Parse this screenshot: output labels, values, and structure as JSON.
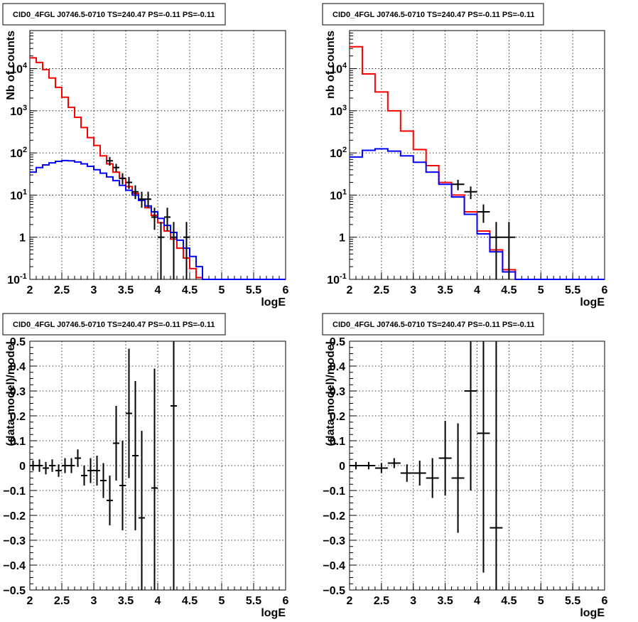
{
  "colors": {
    "data": "#000000",
    "model_total": "#ff0000",
    "model_source": "#0000ff"
  },
  "chart_data": [
    {
      "type": "histogram",
      "title": "CID0_4FGL J0746.5-0710 TS=240.47 PS=-0.11 PS=-0.11",
      "xlabel": "logE",
      "ylabel": "Nb of counts",
      "log_y": true,
      "grid": true,
      "xlim": [
        2,
        6
      ],
      "ylim": [
        0.1,
        80000
      ],
      "xticks": [
        "2",
        "2.5",
        "3",
        "3.5",
        "4",
        "4.5",
        "5",
        "5.5",
        "6"
      ],
      "yticks": [
        {
          "v": 0.1,
          "t": "10"
        },
        {
          "v": 1,
          "t": "1"
        },
        {
          "v": 10,
          "t": "10"
        },
        {
          "v": 100,
          "t": "10"
        },
        {
          "v": 1000,
          "t": "10"
        },
        {
          "v": 10000,
          "t": "10"
        }
      ],
      "bin_edges": [
        2.0,
        2.1,
        2.2,
        2.3,
        2.4,
        2.5,
        2.6,
        2.7,
        2.8,
        2.9,
        3.0,
        3.1,
        3.2,
        3.3,
        3.4,
        3.5,
        3.6,
        3.7,
        3.8,
        3.9,
        4.0,
        4.1,
        4.2,
        4.3,
        4.4,
        4.5,
        4.6,
        4.7,
        4.8,
        4.9,
        5.0,
        5.1,
        5.2,
        5.3,
        5.4,
        5.5,
        5.6,
        5.7,
        5.8,
        5.9,
        6.0
      ],
      "series": [
        {
          "name": "model_total",
          "values": [
            18000,
            14000,
            9500,
            6000,
            3600,
            2100,
            1200,
            700,
            400,
            230,
            150,
            85,
            55,
            35,
            25,
            16,
            11,
            7.5,
            5,
            3.3,
            2.2,
            1.4,
            0.9,
            0.55,
            0.32,
            0.18,
            0.11,
            0.1,
            0.1,
            0.1,
            0.1,
            0.1,
            0.1,
            0.1,
            0.1,
            0.1,
            0.1,
            0.1,
            0.1,
            0.1
          ]
        },
        {
          "name": "model_source",
          "values": [
            35,
            45,
            52,
            58,
            63,
            66,
            65,
            61,
            55,
            48,
            40,
            33,
            27,
            22,
            17,
            13,
            10,
            7.5,
            5.5,
            4,
            2.8,
            1.9,
            1.3,
            0.85,
            0.55,
            0.35,
            0.2,
            0.1,
            0.1,
            0.1,
            0.1,
            0.1,
            0.1,
            0.1,
            0.1,
            0.1,
            0.1,
            0.1,
            0.1,
            0.1
          ]
        },
        {
          "name": "data",
          "points": [
            {
              "x": 3.25,
              "y": 65,
              "lo": 50,
              "hi": 80
            },
            {
              "x": 3.35,
              "y": 45,
              "lo": 35,
              "hi": 55
            },
            {
              "x": 3.45,
              "y": 25,
              "lo": 18,
              "hi": 33
            },
            {
              "x": 3.55,
              "y": 20,
              "lo": 14,
              "hi": 27
            },
            {
              "x": 3.65,
              "y": 12,
              "lo": 8,
              "hi": 17
            },
            {
              "x": 3.75,
              "y": 8,
              "lo": 5,
              "hi": 12
            },
            {
              "x": 3.85,
              "y": 8,
              "lo": 5,
              "hi": 12
            },
            {
              "x": 3.95,
              "y": 3,
              "lo": 1.5,
              "hi": 5
            },
            {
              "x": 4.05,
              "y": 1,
              "lo": 0.1,
              "hi": 2.3
            },
            {
              "x": 4.15,
              "y": 3,
              "lo": 1.4,
              "hi": 5
            },
            {
              "x": 4.25,
              "y": 1,
              "lo": 0.1,
              "hi": 2.3
            },
            {
              "x": 4.45,
              "y": 1,
              "lo": 0.1,
              "hi": 2.3
            }
          ]
        }
      ]
    },
    {
      "type": "histogram",
      "title": "CID0_4FGL J0746.5-0710 TS=240.47 PS=-0.11 PS=-0.11",
      "xlabel": "logE",
      "ylabel": "nb of counts",
      "log_y": true,
      "grid": true,
      "xlim": [
        2,
        6
      ],
      "ylim": [
        0.1,
        80000
      ],
      "xticks": [
        "2",
        "2.5",
        "3",
        "3.5",
        "4",
        "4.5",
        "5",
        "5.5",
        "6"
      ],
      "yticks": [
        {
          "v": 0.1,
          "t": "10"
        },
        {
          "v": 1,
          "t": "1"
        },
        {
          "v": 10,
          "t": "10"
        },
        {
          "v": 100,
          "t": "10"
        },
        {
          "v": 1000,
          "t": "10"
        },
        {
          "v": 10000,
          "t": "10"
        }
      ],
      "bin_edges": [
        2.0,
        2.2,
        2.4,
        2.6,
        2.8,
        3.0,
        3.2,
        3.4,
        3.6,
        3.8,
        4.0,
        4.2,
        4.4,
        4.6,
        4.8,
        5.0,
        5.2,
        5.4,
        5.6,
        5.8,
        6.0
      ],
      "series": [
        {
          "name": "model_total",
          "values": [
            33000,
            7500,
            2800,
            1000,
            330,
            120,
            50,
            20,
            10,
            4,
            1.4,
            0.5,
            0.17,
            0.1,
            0.1,
            0.1,
            0.1,
            0.1,
            0.1,
            0.1
          ]
        },
        {
          "name": "model_source",
          "values": [
            80,
            115,
            125,
            110,
            85,
            60,
            35,
            18,
            9,
            3.5,
            1.2,
            0.45,
            0.15,
            0.1,
            0.1,
            0.1,
            0.1,
            0.1,
            0.1,
            0.1
          ]
        },
        {
          "name": "data",
          "points": [
            {
              "x": 3.7,
              "y": 18,
              "lo": 13,
              "hi": 23
            },
            {
              "x": 3.9,
              "y": 12,
              "lo": 8,
              "hi": 16
            },
            {
              "x": 4.1,
              "y": 4,
              "lo": 2.2,
              "hi": 6
            },
            {
              "x": 4.3,
              "y": 1,
              "lo": 0.1,
              "hi": 2.3
            },
            {
              "x": 4.5,
              "y": 1,
              "lo": 0.1,
              "hi": 2.3
            }
          ]
        }
      ]
    },
    {
      "type": "scatter",
      "title": "CID0_4FGL J0746.5-0710 TS=240.47 PS=-0.11 PS=-0.11",
      "xlabel": "logE",
      "ylabel": "(data-model)/model",
      "log_y": false,
      "grid": true,
      "xlim": [
        2,
        6
      ],
      "ylim": [
        -0.5,
        0.5
      ],
      "xticks": [
        "2",
        "2.5",
        "3",
        "3.5",
        "4",
        "4.5",
        "5",
        "5.5",
        "6"
      ],
      "yticks": [
        {
          "v": -0.5,
          "t": "−0.5"
        },
        {
          "v": -0.4,
          "t": "−0.4"
        },
        {
          "v": -0.3,
          "t": "−0.3"
        },
        {
          "v": -0.2,
          "t": "−0.2"
        },
        {
          "v": -0.1,
          "t": "−0.1"
        },
        {
          "v": 0,
          "t": "0"
        },
        {
          "v": 0.1,
          "t": "0.1"
        },
        {
          "v": 0.2,
          "t": "0.2"
        },
        {
          "v": 0.3,
          "t": "0.3"
        },
        {
          "v": 0.4,
          "t": "0.4"
        },
        {
          "v": 0.5,
          "t": "0.5"
        }
      ],
      "bin_width": 0.1,
      "series": [
        {
          "name": "data",
          "points": [
            {
              "x": 2.05,
              "y": 0.0,
              "err": 0.02
            },
            {
              "x": 2.15,
              "y": 0.0,
              "err": 0.025
            },
            {
              "x": 2.25,
              "y": -0.01,
              "err": 0.025
            },
            {
              "x": 2.35,
              "y": 0.0,
              "err": 0.025
            },
            {
              "x": 2.45,
              "y": -0.02,
              "err": 0.025
            },
            {
              "x": 2.55,
              "y": 0.0,
              "err": 0.03
            },
            {
              "x": 2.65,
              "y": 0.0,
              "err": 0.03
            },
            {
              "x": 2.75,
              "y": 0.03,
              "err": 0.035
            },
            {
              "x": 2.85,
              "y": -0.04,
              "err": 0.04
            },
            {
              "x": 2.95,
              "y": -0.02,
              "err": 0.05
            },
            {
              "x": 3.05,
              "y": -0.02,
              "err": 0.06
            },
            {
              "x": 3.15,
              "y": -0.06,
              "err": 0.07
            },
            {
              "x": 3.25,
              "y": -0.14,
              "err": 0.1
            },
            {
              "x": 3.35,
              "y": 0.09,
              "err": 0.15
            },
            {
              "x": 3.45,
              "y": -0.08,
              "err": 0.18
            },
            {
              "x": 3.55,
              "y": 0.21,
              "err": 0.26
            },
            {
              "x": 3.65,
              "y": 0.04,
              "err": 0.3
            },
            {
              "x": 3.75,
              "y": -0.21,
              "err": 0.35
            },
            {
              "x": 3.95,
              "y": -0.09,
              "err": 0.48
            },
            {
              "x": 4.25,
              "y": 0.24,
              "err": 0.8
            }
          ]
        }
      ]
    },
    {
      "type": "scatter",
      "title": "CID0_4FGL J0746.5-0710 TS=240.47 PS=-0.11 PS=-0.11",
      "xlabel": "logE",
      "ylabel": "(data-model)/model",
      "log_y": false,
      "grid": true,
      "xlim": [
        2,
        6
      ],
      "ylim": [
        -0.5,
        0.5
      ],
      "xticks": [
        "2",
        "2.5",
        "3",
        "3.5",
        "4",
        "4.5",
        "5",
        "5.5",
        "6"
      ],
      "yticks": [
        {
          "v": -0.5,
          "t": "−0.5"
        },
        {
          "v": -0.4,
          "t": "−0.4"
        },
        {
          "v": -0.3,
          "t": "−0.3"
        },
        {
          "v": -0.2,
          "t": "−0.2"
        },
        {
          "v": -0.1,
          "t": "−0.1"
        },
        {
          "v": 0,
          "t": "0"
        },
        {
          "v": 0.1,
          "t": "0.1"
        },
        {
          "v": 0.2,
          "t": "0.2"
        },
        {
          "v": 0.3,
          "t": "0.3"
        },
        {
          "v": 0.4,
          "t": "0.4"
        },
        {
          "v": 0.5,
          "t": "0.5"
        }
      ],
      "bin_width": 0.2,
      "series": [
        {
          "name": "data",
          "points": [
            {
              "x": 2.1,
              "y": 0.0,
              "err": 0.015
            },
            {
              "x": 2.3,
              "y": 0.0,
              "err": 0.015
            },
            {
              "x": 2.5,
              "y": -0.01,
              "err": 0.02
            },
            {
              "x": 2.7,
              "y": 0.01,
              "err": 0.02
            },
            {
              "x": 2.9,
              "y": -0.03,
              "err": 0.035
            },
            {
              "x": 3.1,
              "y": -0.03,
              "err": 0.05
            },
            {
              "x": 3.3,
              "y": -0.05,
              "err": 0.08
            },
            {
              "x": 3.5,
              "y": 0.03,
              "err": 0.15
            },
            {
              "x": 3.7,
              "y": -0.05,
              "err": 0.22
            },
            {
              "x": 3.9,
              "y": 0.3,
              "err": 0.4
            },
            {
              "x": 4.1,
              "y": 0.13,
              "err": 0.56
            },
            {
              "x": 4.3,
              "y": -0.25,
              "err": 0.8
            }
          ]
        }
      ]
    }
  ]
}
